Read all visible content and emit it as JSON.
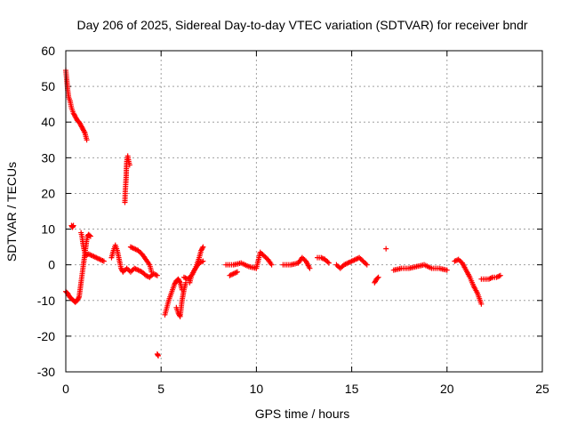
{
  "chart_data": {
    "type": "scatter",
    "title": "Day 206 of 2025, Sidereal Day-to-day VTEC variation (SDTVAR) for receiver bndr",
    "xlabel": "GPS time / hours",
    "ylabel": "SDTVAR / TECUs",
    "xlim": [
      0,
      25
    ],
    "ylim": [
      -30,
      60
    ],
    "xticks": [
      "0",
      "5",
      "10",
      "15",
      "20",
      "25"
    ],
    "yticks": [
      "60",
      "50",
      "40",
      "30",
      "20",
      "10",
      "0",
      "-10",
      "-20",
      "-30"
    ],
    "grid": true,
    "marker": "+",
    "color": "#ff0000",
    "series": [
      {
        "name": "SDTVAR",
        "segments": [
          [
            [
              0.0,
              54.5
            ],
            [
              0.05,
              52.0
            ],
            [
              0.1,
              49.0
            ],
            [
              0.15,
              47.0
            ],
            [
              0.22,
              46.0
            ],
            [
              0.3,
              44.0
            ],
            [
              0.4,
              42.5
            ],
            [
              0.5,
              41.5
            ],
            [
              0.6,
              40.5
            ],
            [
              0.7,
              40.0
            ],
            [
              0.8,
              39.0
            ],
            [
              0.9,
              38.0
            ],
            [
              1.0,
              37.0
            ],
            [
              1.05,
              36.0
            ],
            [
              1.1,
              35.0
            ]
          ],
          [
            [
              0.0,
              -7.5
            ],
            [
              0.1,
              -8.0
            ],
            [
              0.2,
              -9.0
            ],
            [
              0.3,
              -9.5
            ],
            [
              0.4,
              -10.0
            ],
            [
              0.5,
              -10.5
            ],
            [
              0.6,
              -10.0
            ],
            [
              0.7,
              -9.0
            ],
            [
              0.75,
              -7.0
            ],
            [
              0.8,
              -5.0
            ],
            [
              0.85,
              -3.0
            ],
            [
              0.9,
              -1.0
            ],
            [
              0.95,
              1.0
            ],
            [
              1.0,
              3.0
            ],
            [
              1.05,
              5.0
            ],
            [
              1.1,
              7.0
            ],
            [
              1.15,
              8.0
            ],
            [
              1.2,
              8.5
            ],
            [
              1.3,
              8.0
            ]
          ],
          [
            [
              0.3,
              11.0
            ],
            [
              0.35,
              10.5
            ],
            [
              0.4,
              11.0
            ]
          ],
          [
            [
              0.8,
              9.0
            ],
            [
              0.85,
              8.0
            ],
            [
              0.9,
              6.0
            ],
            [
              0.95,
              4.5
            ],
            [
              1.0,
              3.5
            ]
          ],
          [
            [
              1.0,
              2.5
            ],
            [
              1.2,
              3.0
            ],
            [
              1.4,
              2.5
            ],
            [
              1.6,
              2.0
            ],
            [
              1.8,
              1.5
            ],
            [
              2.0,
              1.0
            ]
          ],
          [
            [
              2.4,
              2.0
            ],
            [
              2.5,
              4.0
            ],
            [
              2.6,
              5.5
            ],
            [
              2.7,
              4.0
            ],
            [
              2.8,
              1.5
            ],
            [
              2.9,
              -1.0
            ],
            [
              3.0,
              -2.0
            ],
            [
              3.2,
              -1.0
            ],
            [
              3.4,
              -2.0
            ],
            [
              3.6,
              -1.0
            ],
            [
              3.8,
              -1.5
            ],
            [
              4.0,
              -2.0
            ],
            [
              4.2,
              -3.0
            ],
            [
              4.4,
              -3.5
            ],
            [
              4.6,
              -2.5
            ],
            [
              4.8,
              -3.0
            ]
          ],
          [
            [
              3.1,
              17.5
            ],
            [
              3.12,
              20.5
            ],
            [
              3.15,
              23.0
            ],
            [
              3.17,
              25.0
            ],
            [
              3.18,
              27.0
            ],
            [
              3.2,
              29.0
            ],
            [
              3.25,
              30.5
            ],
            [
              3.3,
              29.0
            ],
            [
              3.35,
              28.0
            ]
          ],
          [
            [
              3.4,
              5.0
            ],
            [
              3.6,
              4.5
            ],
            [
              3.8,
              4.0
            ],
            [
              4.0,
              3.0
            ],
            [
              4.2,
              1.5
            ],
            [
              4.4,
              0.0
            ],
            [
              4.5,
              -2.0
            ]
          ],
          [
            [
              4.8,
              -25.0
            ],
            [
              4.85,
              -25.5
            ]
          ],
          [
            [
              5.2,
              -14.0
            ],
            [
              5.3,
              -12.0
            ],
            [
              5.4,
              -10.0
            ],
            [
              5.5,
              -8.5
            ],
            [
              5.6,
              -7.0
            ],
            [
              5.7,
              -5.5
            ],
            [
              5.8,
              -4.5
            ],
            [
              5.9,
              -4.0
            ],
            [
              6.0,
              -5.0
            ],
            [
              6.1,
              -7.0
            ]
          ],
          [
            [
              5.8,
              -12.0
            ],
            [
              5.9,
              -13.5
            ],
            [
              6.0,
              -14.5
            ],
            [
              6.1,
              -10.0
            ],
            [
              6.2,
              -7.0
            ],
            [
              6.3,
              -5.0
            ]
          ],
          [
            [
              6.2,
              -3.5
            ],
            [
              6.4,
              -4.0
            ],
            [
              6.6,
              -3.0
            ],
            [
              6.8,
              -1.0
            ],
            [
              7.0,
              2.0
            ],
            [
              7.1,
              4.0
            ],
            [
              7.2,
              5.0
            ]
          ],
          [
            [
              6.5,
              -5.0
            ],
            [
              6.6,
              -3.0
            ],
            [
              6.8,
              -1.0
            ],
            [
              7.0,
              0.5
            ],
            [
              7.2,
              1.0
            ]
          ],
          [
            [
              8.4,
              0.0
            ],
            [
              8.8,
              0.0
            ],
            [
              9.2,
              0.5
            ],
            [
              9.6,
              -0.5
            ],
            [
              10.0,
              -1.0
            ],
            [
              10.2,
              3.5
            ],
            [
              10.4,
              2.5
            ],
            [
              10.6,
              1.5
            ],
            [
              10.8,
              0.0
            ]
          ],
          [
            [
              8.6,
              -3.0
            ],
            [
              8.8,
              -2.5
            ],
            [
              9.0,
              -2.0
            ]
          ],
          [
            [
              11.4,
              0.0
            ],
            [
              11.8,
              0.0
            ],
            [
              12.2,
              0.5
            ],
            [
              12.4,
              2.0
            ],
            [
              12.6,
              1.0
            ],
            [
              12.8,
              -1.0
            ]
          ],
          [
            [
              13.2,
              2.0
            ],
            [
              13.4,
              2.0
            ],
            [
              13.6,
              1.5
            ],
            [
              13.8,
              0.5
            ]
          ],
          [
            [
              14.2,
              0.0
            ],
            [
              14.4,
              -1.0
            ],
            [
              14.6,
              0.0
            ],
            [
              14.8,
              0.5
            ],
            [
              15.0,
              1.0
            ],
            [
              15.2,
              1.5
            ],
            [
              15.4,
              2.0
            ],
            [
              15.6,
              1.0
            ],
            [
              15.8,
              0.0
            ]
          ],
          [
            [
              16.2,
              -5.0
            ],
            [
              16.3,
              -4.0
            ],
            [
              16.4,
              -3.5
            ]
          ],
          [
            [
              16.8,
              4.5
            ]
          ],
          [
            [
              17.2,
              -1.5
            ],
            [
              17.6,
              -1.0
            ],
            [
              18.0,
              -1.0
            ],
            [
              18.4,
              -0.5
            ],
            [
              18.8,
              0.0
            ],
            [
              19.2,
              -1.0
            ],
            [
              19.6,
              -1.0
            ],
            [
              20.0,
              -1.5
            ]
          ],
          [
            [
              20.4,
              1.0
            ],
            [
              20.6,
              1.5
            ],
            [
              20.8,
              0.5
            ],
            [
              21.0,
              -1.5
            ],
            [
              21.2,
              -3.5
            ],
            [
              21.4,
              -6.0
            ],
            [
              21.6,
              -8.0
            ],
            [
              21.7,
              -9.5
            ],
            [
              21.8,
              -11.0
            ]
          ],
          [
            [
              21.8,
              -4.0
            ],
            [
              22.0,
              -4.0
            ],
            [
              22.2,
              -4.0
            ],
            [
              22.4,
              -3.5
            ],
            [
              22.6,
              -3.5
            ],
            [
              22.8,
              -3.0
            ]
          ]
        ]
      }
    ]
  }
}
